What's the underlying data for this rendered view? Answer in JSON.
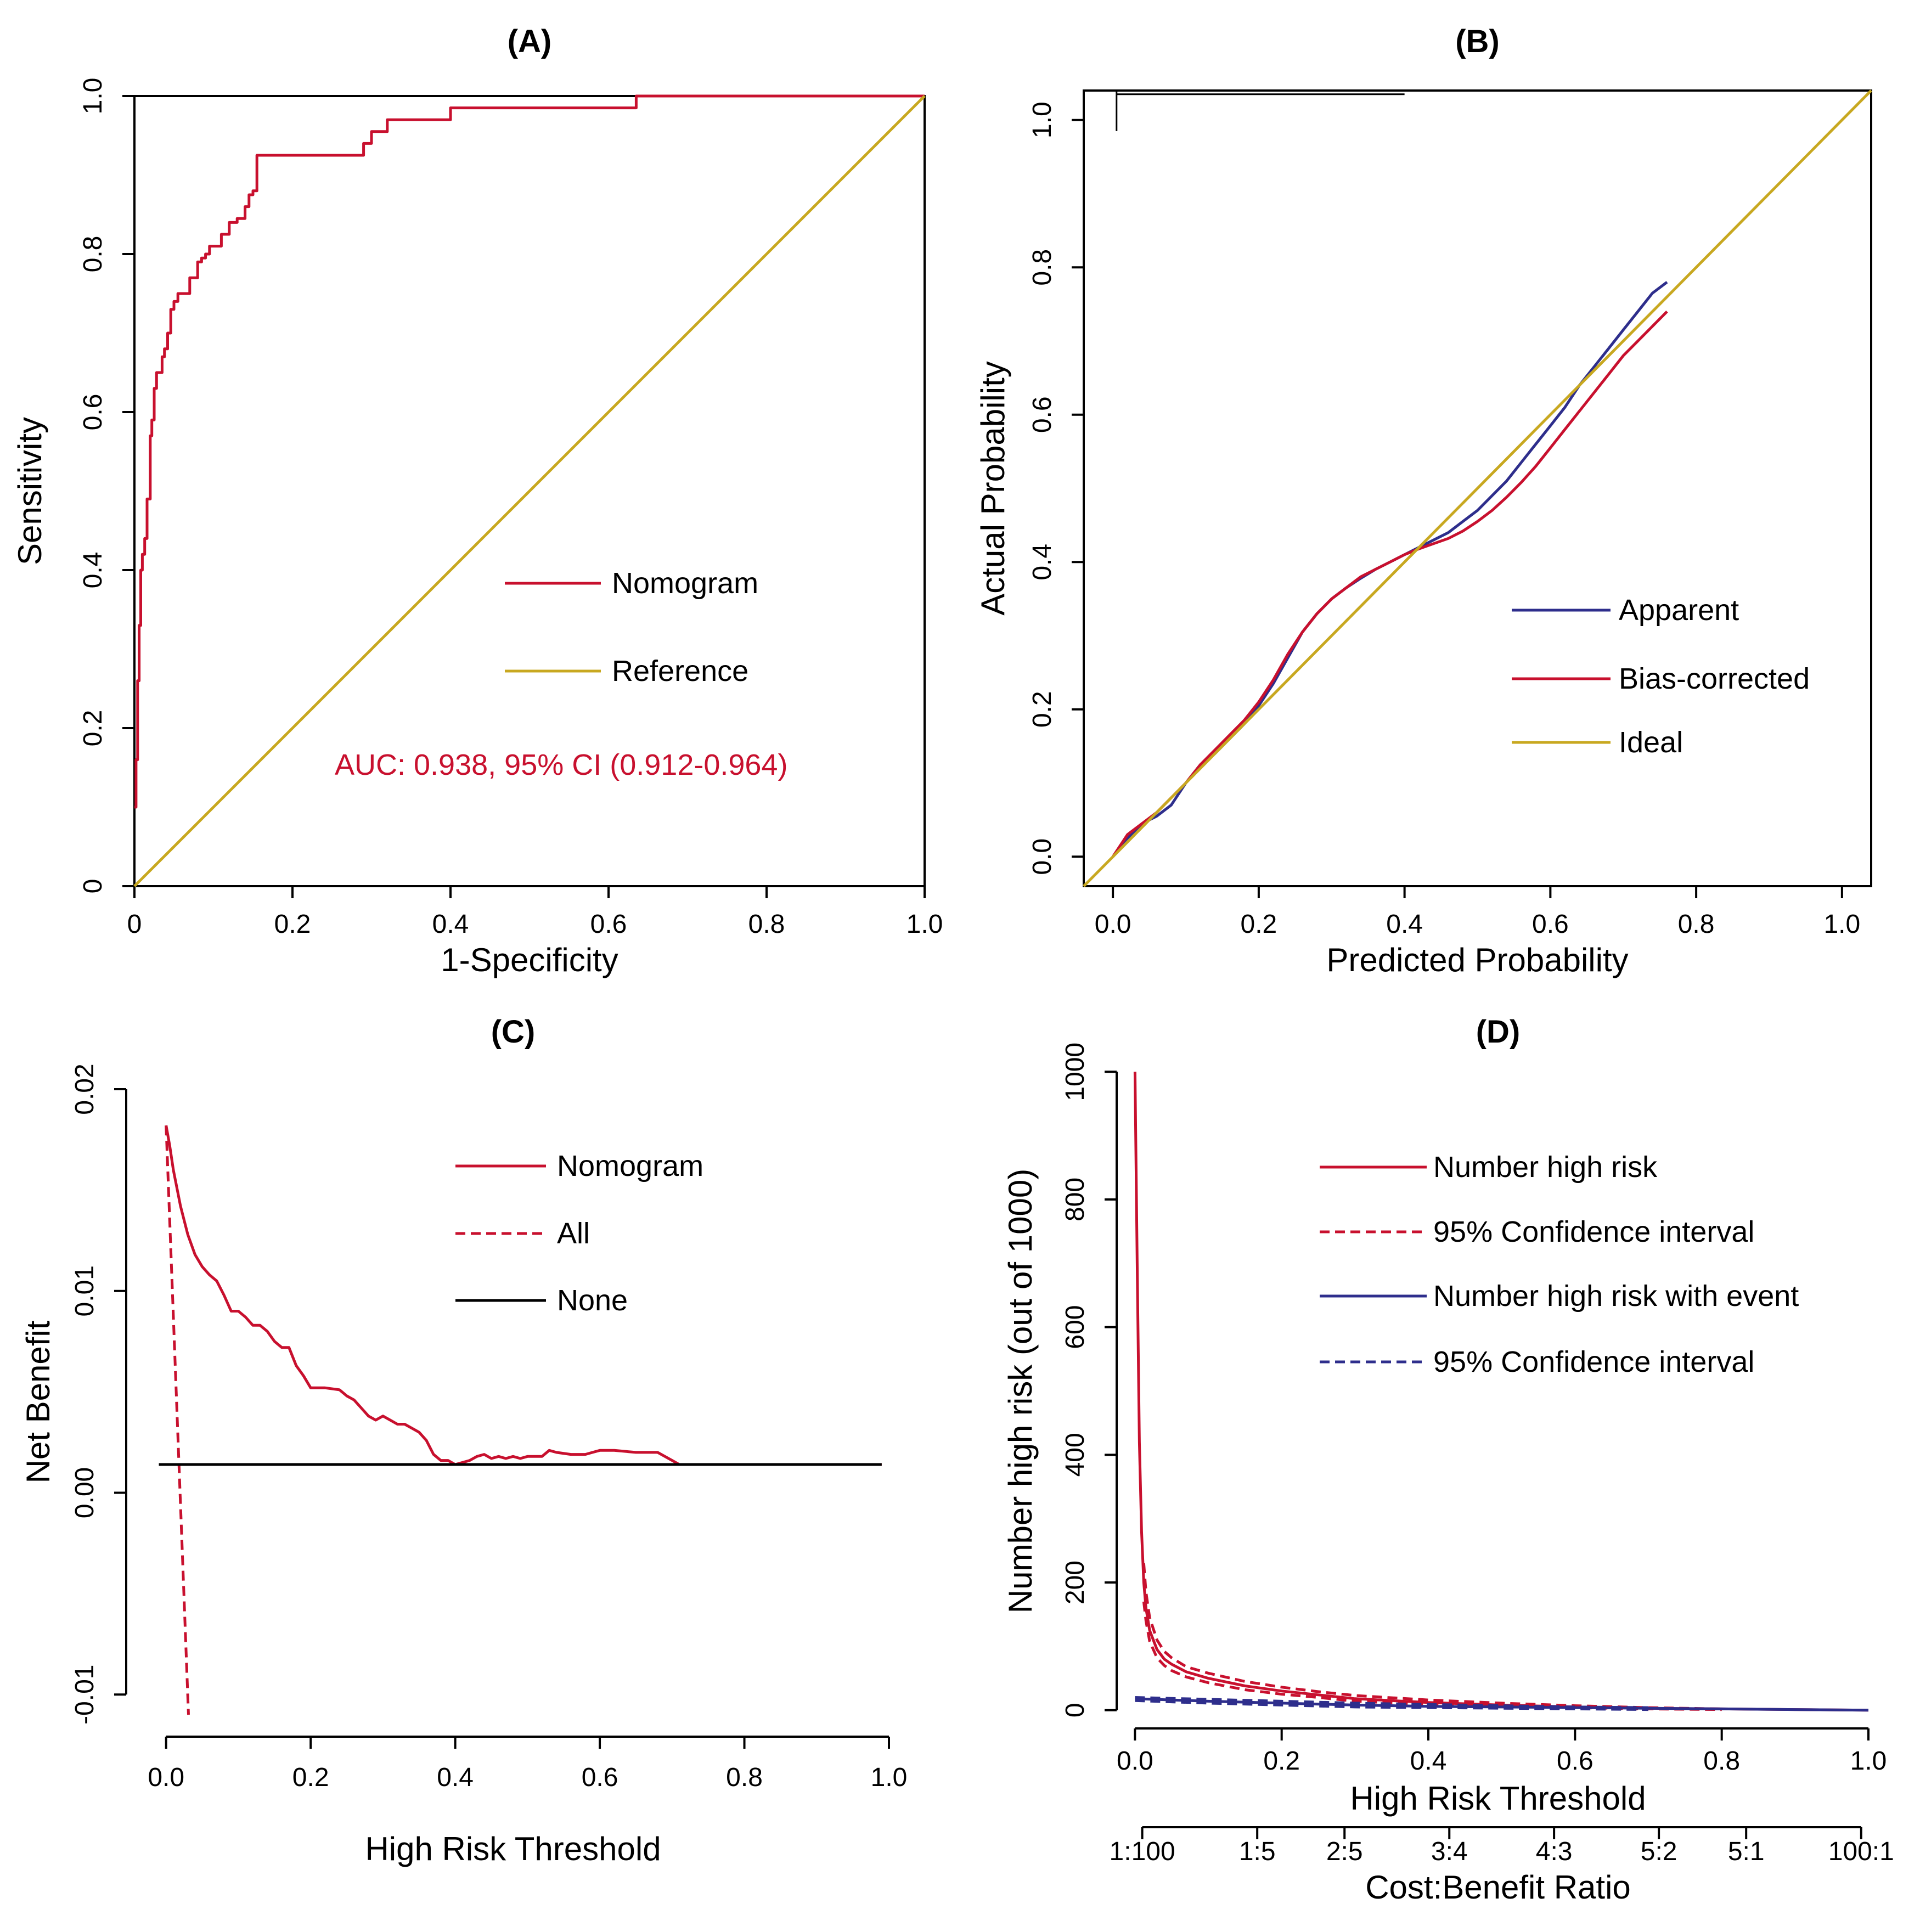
{
  "colors": {
    "red": "#c8102e",
    "gold": "#c8a820",
    "navy": "#2e2e8c",
    "black": "#000000"
  },
  "chart_data": [
    {
      "id": "A",
      "type": "line",
      "title": "(A)",
      "xlabel": "1-Specificity",
      "ylabel": "Sensitivity",
      "xlim": [
        0,
        1
      ],
      "ylim": [
        0,
        1
      ],
      "xticks": [
        "0",
        "0.2",
        "0.4",
        "0.6",
        "0.8",
        "1.0"
      ],
      "xtick_values": [
        0,
        0.2,
        0.4,
        0.6,
        0.8,
        1.0
      ],
      "yticks": [
        "0",
        "0.2",
        "0.4",
        "0.6",
        "0.8",
        "1.0"
      ],
      "ytick_values": [
        0,
        0.2,
        0.4,
        0.6,
        0.8,
        1.0
      ],
      "legend": [
        "Nomogram",
        "Reference"
      ],
      "annotation": "AUC: 0.938, 95% CI (0.912-0.964)",
      "series": [
        {
          "name": "Nomogram",
          "color": "red",
          "style": "step",
          "x": [
            0,
            0.002,
            0.004,
            0.006,
            0.008,
            0.01,
            0.013,
            0.016,
            0.02,
            0.022,
            0.025,
            0.028,
            0.031,
            0.035,
            0.038,
            0.042,
            0.046,
            0.05,
            0.055,
            0.06,
            0.07,
            0.08,
            0.085,
            0.09,
            0.095,
            0.1,
            0.11,
            0.12,
            0.125,
            0.13,
            0.14,
            0.145,
            0.15,
            0.155,
            0.2,
            0.25,
            0.28,
            0.29,
            0.3,
            0.32,
            0.34,
            0.38,
            0.4,
            0.45,
            0.5,
            0.6,
            0.635,
            1.0
          ],
          "y": [
            0.1,
            0.16,
            0.26,
            0.33,
            0.4,
            0.42,
            0.44,
            0.49,
            0.57,
            0.59,
            0.63,
            0.65,
            0.65,
            0.67,
            0.68,
            0.7,
            0.73,
            0.74,
            0.75,
            0.75,
            0.77,
            0.79,
            0.795,
            0.8,
            0.81,
            0.81,
            0.825,
            0.84,
            0.84,
            0.845,
            0.86,
            0.875,
            0.88,
            0.925,
            0.925,
            0.925,
            0.925,
            0.94,
            0.955,
            0.97,
            0.97,
            0.97,
            0.985,
            0.985,
            0.985,
            0.985,
            1.0,
            1.0
          ]
        },
        {
          "name": "Reference",
          "color": "gold",
          "x": [
            0,
            1
          ],
          "y": [
            0,
            1
          ]
        }
      ]
    },
    {
      "id": "B",
      "type": "line",
      "title": "(B)",
      "xlabel": "Predicted Probability",
      "ylabel": "Actual Probability",
      "xlim": [
        -0.04,
        1.04
      ],
      "ylim": [
        -0.04,
        1.04
      ],
      "xticks": [
        "0.0",
        "0.2",
        "0.4",
        "0.6",
        "0.8",
        "1.0"
      ],
      "xtick_values": [
        0,
        0.2,
        0.4,
        0.6,
        0.8,
        1.0
      ],
      "yticks": [
        "0.0",
        "0.2",
        "0.4",
        "0.6",
        "0.8",
        "1.0"
      ],
      "ytick_values": [
        0,
        0.2,
        0.4,
        0.6,
        0.8,
        1.0
      ],
      "legend": [
        "Apparent",
        "Bias-corrected",
        "Ideal"
      ],
      "series": [
        {
          "name": "Apparent",
          "color": "navy",
          "x": [
            0.0,
            0.02,
            0.04,
            0.06,
            0.08,
            0.1,
            0.12,
            0.14,
            0.16,
            0.18,
            0.2,
            0.22,
            0.24,
            0.26,
            0.28,
            0.3,
            0.32,
            0.34,
            0.36,
            0.38,
            0.4,
            0.42,
            0.44,
            0.46,
            0.48,
            0.5,
            0.52,
            0.54,
            0.56,
            0.58,
            0.6,
            0.62,
            0.64,
            0.66,
            0.68,
            0.7,
            0.72,
            0.74,
            0.76
          ],
          "y": [
            0.0,
            0.025,
            0.045,
            0.055,
            0.07,
            0.1,
            0.125,
            0.14,
            0.16,
            0.18,
            0.205,
            0.235,
            0.27,
            0.305,
            0.33,
            0.35,
            0.365,
            0.378,
            0.39,
            0.4,
            0.41,
            0.42,
            0.43,
            0.44,
            0.455,
            0.47,
            0.49,
            0.51,
            0.535,
            0.56,
            0.585,
            0.61,
            0.64,
            0.665,
            0.69,
            0.715,
            0.74,
            0.765,
            0.78
          ]
        },
        {
          "name": "Bias-corrected",
          "color": "red",
          "x": [
            0.0,
            0.02,
            0.04,
            0.06,
            0.08,
            0.1,
            0.12,
            0.14,
            0.16,
            0.18,
            0.2,
            0.22,
            0.24,
            0.26,
            0.28,
            0.3,
            0.32,
            0.34,
            0.36,
            0.38,
            0.4,
            0.42,
            0.44,
            0.46,
            0.48,
            0.5,
            0.52,
            0.54,
            0.56,
            0.58,
            0.6,
            0.62,
            0.64,
            0.66,
            0.68,
            0.7,
            0.72,
            0.74,
            0.76
          ],
          "y": [
            0.0,
            0.03,
            0.045,
            0.06,
            0.08,
            0.1,
            0.125,
            0.145,
            0.165,
            0.185,
            0.21,
            0.24,
            0.275,
            0.305,
            0.33,
            0.35,
            0.365,
            0.38,
            0.39,
            0.4,
            0.41,
            0.418,
            0.425,
            0.432,
            0.442,
            0.455,
            0.47,
            0.488,
            0.508,
            0.53,
            0.555,
            0.58,
            0.605,
            0.63,
            0.655,
            0.68,
            0.7,
            0.72,
            0.74
          ]
        },
        {
          "name": "Ideal",
          "color": "gold",
          "x": [
            -0.04,
            1.04
          ],
          "y": [
            -0.04,
            1.04
          ]
        }
      ]
    },
    {
      "id": "C",
      "type": "line",
      "title": "(C)",
      "xlabel": "High Risk Threshold",
      "ylabel": "Net Benefit",
      "xlim": [
        -0.04,
        1.0
      ],
      "ylim": [
        -0.011,
        0.02
      ],
      "xticks": [
        "0.0",
        "0.2",
        "0.4",
        "0.6",
        "0.8",
        "1.0"
      ],
      "xtick_values": [
        0,
        0.2,
        0.4,
        0.6,
        0.8,
        1.0
      ],
      "yticks": [
        "-0.01",
        "0.00",
        "0.01",
        "0.02"
      ],
      "ytick_values": [
        -0.01,
        0.0,
        0.01,
        0.02
      ],
      "legend": [
        "Nomogram",
        "All",
        "None"
      ],
      "series": [
        {
          "name": "Nomogram",
          "color": "red",
          "x": [
            0.0,
            0.005,
            0.01,
            0.02,
            0.03,
            0.04,
            0.05,
            0.06,
            0.07,
            0.08,
            0.09,
            0.1,
            0.11,
            0.12,
            0.13,
            0.14,
            0.15,
            0.16,
            0.17,
            0.18,
            0.19,
            0.2,
            0.22,
            0.24,
            0.25,
            0.26,
            0.27,
            0.28,
            0.29,
            0.3,
            0.31,
            0.32,
            0.33,
            0.34,
            0.35,
            0.36,
            0.37,
            0.38,
            0.39,
            0.4,
            0.42,
            0.43,
            0.44,
            0.45,
            0.46,
            0.47,
            0.48,
            0.49,
            0.5,
            0.51,
            0.52,
            0.53,
            0.54,
            0.56,
            0.58,
            0.59,
            0.6,
            0.61,
            0.62,
            0.65,
            0.68,
            0.7,
            0.71,
            0.75,
            0.8,
            0.9,
            0.99
          ],
          "y": [
            0.0182,
            0.0172,
            0.016,
            0.0142,
            0.0128,
            0.0118,
            0.0112,
            0.0108,
            0.0105,
            0.0098,
            0.009,
            0.009,
            0.0087,
            0.0083,
            0.0083,
            0.008,
            0.0075,
            0.0072,
            0.0072,
            0.0063,
            0.0058,
            0.0052,
            0.0052,
            0.0051,
            0.0048,
            0.0046,
            0.0042,
            0.0038,
            0.0036,
            0.0038,
            0.0036,
            0.0034,
            0.0034,
            0.0032,
            0.003,
            0.0026,
            0.0019,
            0.0016,
            0.0016,
            0.0014,
            0.0016,
            0.0018,
            0.0019,
            0.0017,
            0.0018,
            0.0017,
            0.0018,
            0.0017,
            0.0018,
            0.0018,
            0.0018,
            0.0021,
            0.002,
            0.0019,
            0.0019,
            0.002,
            0.0021,
            0.0021,
            0.0021,
            0.002,
            0.002,
            0.0016,
            0.0014,
            0.0014,
            0.0014,
            0.0014,
            0.0014
          ]
        },
        {
          "name": "All",
          "color": "red",
          "dashed": true,
          "x": [
            0.0,
            0.031
          ],
          "y": [
            0.0182,
            -0.011
          ]
        },
        {
          "name": "None",
          "color": "black",
          "x": [
            -0.01,
            0.99
          ],
          "y": [
            0.0014,
            0.0014
          ]
        }
      ]
    },
    {
      "id": "D",
      "type": "line",
      "title": "(D)",
      "xlabel": "High Risk Threshold",
      "ylabel": "Number high risk (out of 1000)",
      "x2label": "Cost:Benefit Ratio",
      "xlim": [
        -0.01,
        1.0
      ],
      "ylim": [
        -20,
        1020
      ],
      "xticks": [
        "0.0",
        "0.2",
        "0.4",
        "0.6",
        "0.8",
        "1.0"
      ],
      "xtick_values": [
        0,
        0.2,
        0.4,
        0.6,
        0.8,
        1.0
      ],
      "yticks": [
        "0",
        "200",
        "400",
        "600",
        "800",
        "1000"
      ],
      "ytick_values": [
        0,
        200,
        400,
        600,
        800,
        1000
      ],
      "x2ticks": [
        "1:100",
        "1:5",
        "2:5",
        "3:4",
        "4:3",
        "5:2",
        "5:1",
        "100:1"
      ],
      "x2tick_values": [
        0.0099,
        0.1667,
        0.2857,
        0.4286,
        0.5714,
        0.7143,
        0.8333,
        0.9901
      ],
      "legend": [
        "Number high risk",
        "95% Confidence interval",
        "Number high risk with event",
        "95% Confidence interval"
      ],
      "series": [
        {
          "name": "Number high risk",
          "color": "red",
          "x": [
            0.0,
            0.003,
            0.006,
            0.009,
            0.012,
            0.015,
            0.02,
            0.03,
            0.04,
            0.05,
            0.07,
            0.1,
            0.15,
            0.2,
            0.25,
            0.3,
            0.4,
            0.5,
            0.6,
            0.7,
            0.8,
            0.9,
            1.0
          ],
          "y": [
            1000,
            700,
            420,
            280,
            200,
            160,
            125,
            95,
            80,
            72,
            60,
            50,
            38,
            30,
            24,
            18,
            12,
            8,
            5,
            3,
            2,
            1,
            0
          ]
        },
        {
          "name": "95% Confidence interval",
          "color": "red",
          "dashed": true,
          "x": [
            0.012,
            0.015,
            0.02,
            0.03,
            0.04,
            0.05,
            0.07,
            0.1,
            0.15,
            0.2,
            0.25,
            0.3,
            0.4,
            0.5,
            0.6,
            0.7,
            0.8
          ],
          "y": [
            230,
            185,
            145,
            110,
            92,
            82,
            68,
            58,
            45,
            36,
            29,
            23,
            16,
            11,
            7,
            4,
            2
          ]
        },
        {
          "name": "95% Confidence interval",
          "color": "red",
          "dashed": true,
          "x": [
            0.012,
            0.015,
            0.02,
            0.03,
            0.04,
            0.05,
            0.07,
            0.1,
            0.15,
            0.2,
            0.25,
            0.3,
            0.4,
            0.5,
            0.6,
            0.7,
            0.8
          ],
          "y": [
            170,
            140,
            108,
            82,
            70,
            62,
            52,
            43,
            32,
            25,
            20,
            14,
            9,
            6,
            4,
            2,
            1
          ]
        },
        {
          "name": "Number high risk with event",
          "color": "navy",
          "x": [
            0.0,
            0.1,
            0.2,
            0.3,
            0.4,
            0.5,
            0.6,
            0.7,
            0.8,
            0.9,
            1.0
          ],
          "y": [
            18,
            14,
            11,
            8,
            6,
            5,
            4,
            3,
            2,
            1,
            0
          ]
        },
        {
          "name": "95% Confidence interval",
          "color": "navy",
          "dashed": true,
          "x": [
            0.0,
            0.1,
            0.2,
            0.3,
            0.4,
            0.5,
            0.6,
            0.7
          ],
          "y": [
            20,
            17,
            14,
            11,
            9,
            7,
            5,
            4
          ]
        },
        {
          "name": "95% Confidence interval",
          "color": "navy",
          "dashed": true,
          "x": [
            0.0,
            0.1,
            0.2,
            0.3,
            0.4,
            0.5,
            0.6,
            0.7
          ],
          "y": [
            15,
            11,
            8,
            5,
            4,
            3,
            2,
            1
          ]
        }
      ]
    }
  ]
}
